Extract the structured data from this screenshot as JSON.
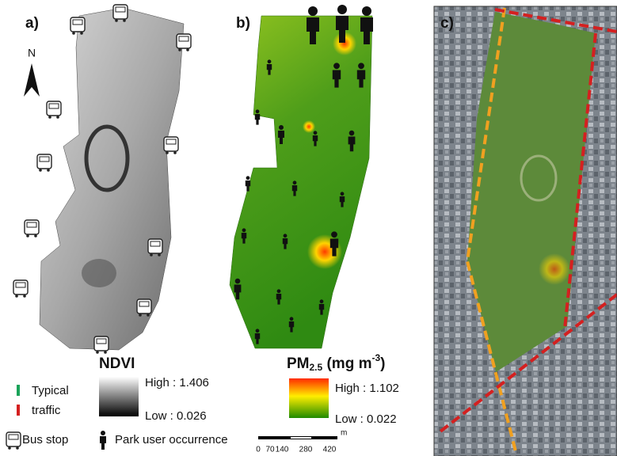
{
  "panels": {
    "a": "a)",
    "b": "b)",
    "c": "c)"
  },
  "north": "N",
  "ndvi": {
    "title": "NDVI",
    "high": "High : 1.406",
    "low": "Low : 0.026"
  },
  "pm": {
    "title": "PM",
    "sub": "2.5",
    "unit": " (mg m",
    "sup": "-3",
    "close": ")",
    "high": "High : 1.102",
    "low": "Low : 0.022"
  },
  "legend": {
    "typical": "Typical",
    "traffic": "traffic",
    "bus_stop": "Bus stop",
    "park_user": "Park user occurrence"
  },
  "scale": {
    "labels": [
      "0",
      "70",
      "140",
      "280",
      "420"
    ],
    "unit": "m"
  }
}
